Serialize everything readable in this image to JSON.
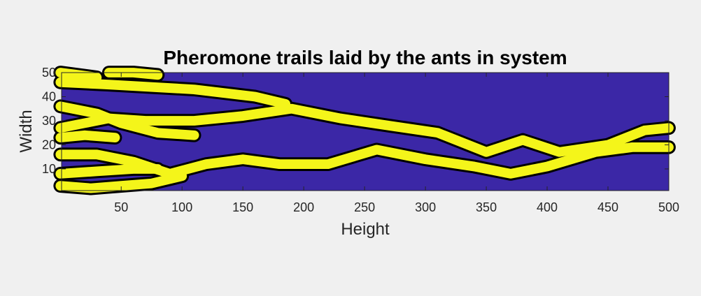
{
  "chart_data": {
    "type": "heatmap",
    "title": "Pheromone trails laid by the ants in system",
    "xlabel": "Height",
    "ylabel": "Width",
    "xlim": [
      1,
      500
    ],
    "ylim": [
      1,
      50
    ],
    "xticks": [
      50,
      100,
      150,
      200,
      250,
      300,
      350,
      400,
      450,
      500
    ],
    "yticks": [
      10,
      20,
      30,
      40,
      50
    ],
    "grid": false,
    "legend": "none",
    "colors": {
      "background": "#3b27a6",
      "trail": "#f4f51a",
      "contour": "#000000"
    },
    "trail_half_width": 2,
    "trails": [
      {
        "points": [
          [
            0,
            27
          ],
          [
            20,
            29
          ],
          [
            40,
            31
          ],
          [
            70,
            30
          ],
          [
            110,
            30
          ],
          [
            150,
            32
          ],
          [
            190,
            35
          ],
          [
            230,
            31
          ],
          [
            270,
            28
          ],
          [
            310,
            25
          ],
          [
            350,
            17
          ],
          [
            380,
            22
          ],
          [
            410,
            17
          ],
          [
            450,
            20
          ],
          [
            480,
            26
          ],
          [
            500,
            27
          ]
        ]
      },
      {
        "points": [
          [
            0,
            16
          ],
          [
            30,
            16
          ],
          [
            60,
            13
          ],
          [
            90,
            8
          ],
          [
            120,
            12
          ],
          [
            150,
            14
          ],
          [
            180,
            12
          ],
          [
            220,
            12
          ],
          [
            260,
            18
          ],
          [
            300,
            14
          ],
          [
            340,
            11
          ],
          [
            370,
            8
          ],
          [
            400,
            11
          ],
          [
            440,
            17
          ],
          [
            470,
            19
          ],
          [
            500,
            19
          ]
        ]
      },
      {
        "points": [
          [
            0,
            36
          ],
          [
            30,
            33
          ],
          [
            50,
            29
          ],
          [
            80,
            25
          ],
          [
            110,
            24
          ]
        ]
      },
      {
        "points": [
          [
            0,
            46
          ],
          [
            40,
            45
          ],
          [
            110,
            43
          ],
          [
            160,
            40
          ],
          [
            185,
            37
          ]
        ]
      },
      {
        "points": [
          [
            0,
            8
          ],
          [
            30,
            9
          ],
          [
            60,
            10
          ],
          [
            80,
            10
          ]
        ]
      },
      {
        "points": [
          [
            0,
            23
          ],
          [
            20,
            24
          ],
          [
            45,
            23
          ]
        ]
      },
      {
        "points": [
          [
            0,
            3
          ],
          [
            25,
            2
          ],
          [
            50,
            3
          ],
          [
            75,
            4
          ],
          [
            100,
            7
          ]
        ]
      },
      {
        "points": [
          [
            0,
            50
          ],
          [
            15,
            49
          ],
          [
            30,
            48
          ]
        ]
      },
      {
        "points": [
          [
            40,
            50
          ],
          [
            60,
            50
          ],
          [
            80,
            49
          ]
        ]
      }
    ]
  }
}
